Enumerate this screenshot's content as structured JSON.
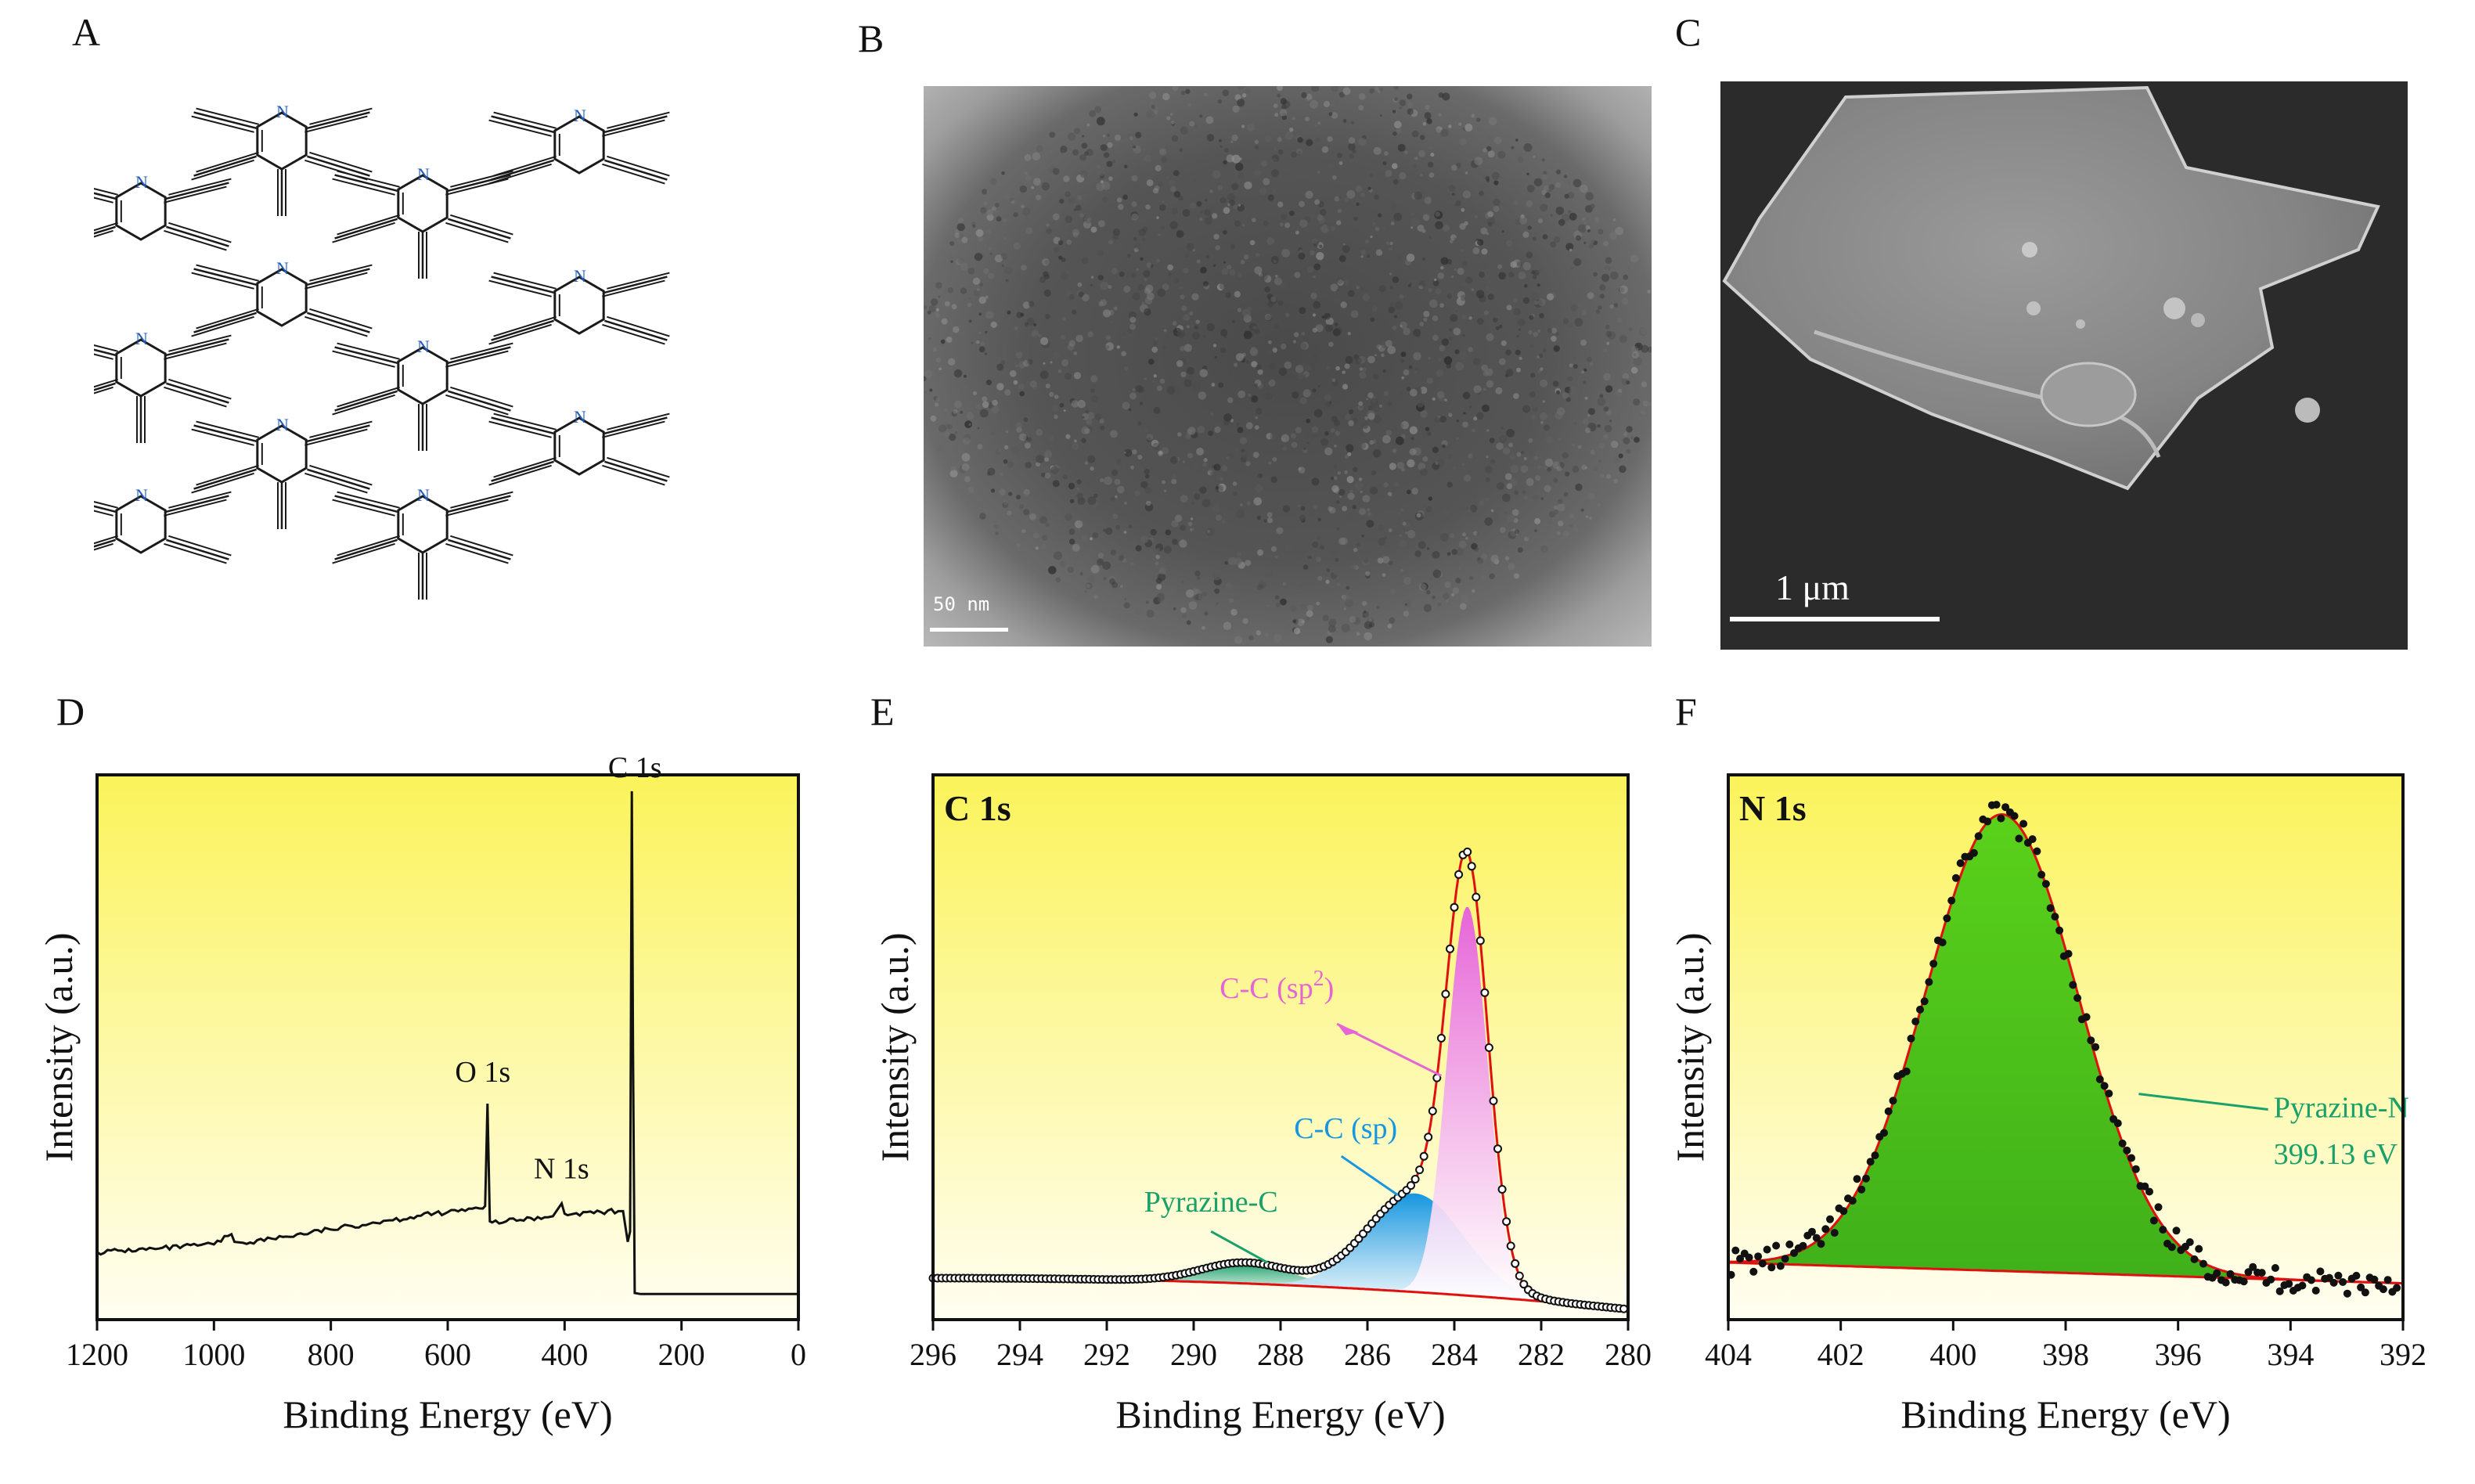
{
  "panel_labels": {
    "a": "A",
    "b": "B",
    "c": "C",
    "d": "D",
    "e": "E",
    "f": "F"
  },
  "structure": {
    "n_label": "N"
  },
  "tem": {
    "scale_text": "50 nm"
  },
  "sem": {
    "scale_text": "1 μm"
  },
  "colors": {
    "chart_bg_top": "#fbf35a",
    "chart_bg_bottom": "#fffef2",
    "fit": "#e01010",
    "sp2": "#e664d8",
    "sp": "#1596e0",
    "pyrazine": "#1aa06a",
    "n_fill": "#5ad11a",
    "n_text": "#1aa06a"
  },
  "chart_data": [
    {
      "type": "line",
      "title": "",
      "xlabel": "Binding Energy (eV)",
      "ylabel": "Intensity (a.u.)",
      "xlim": [
        1200,
        0
      ],
      "ylim": [
        0,
        100
      ],
      "xticks": [
        1200,
        1000,
        800,
        600,
        400,
        200,
        0
      ],
      "x": [
        1200,
        1100,
        1000,
        970,
        965,
        950,
        900,
        800,
        700,
        600,
        540,
        536,
        532,
        528,
        524,
        500,
        420,
        405,
        400,
        395,
        380,
        300,
        292,
        288,
        285,
        283,
        280,
        270,
        200,
        100,
        0
      ],
      "y": [
        10.0,
        10.6,
        11.5,
        13.5,
        12.0,
        11.8,
        12.6,
        14.4,
        16.2,
        17.8,
        18.5,
        19.0,
        39.0,
        16.0,
        15.8,
        16.0,
        17.0,
        19.5,
        17.5,
        17.2,
        17.6,
        18.0,
        12.0,
        14.0,
        100.0,
        50.0,
        2.0,
        1.8,
        1.8,
        1.8,
        1.8
      ],
      "annotations": [
        "C 1s",
        "O 1s",
        "N 1s"
      ]
    },
    {
      "type": "line",
      "title": "C 1s",
      "xlabel": "Binding Energy (eV)",
      "ylabel": "Intensity (a.u.)",
      "xlim": [
        296,
        280
      ],
      "ylim": [
        0,
        100
      ],
      "xticks": [
        296,
        294,
        292,
        290,
        288,
        286,
        284,
        282,
        280
      ],
      "series": [
        {
          "name": "C-C (sp²)",
          "center": 283.7,
          "height": 75,
          "fwhm": 1.1
        },
        {
          "name": "C-C (sp)",
          "center": 284.9,
          "height": 19,
          "fwhm": 2.6
        },
        {
          "name": "Pyrazine-C",
          "center": 288.8,
          "height": 4,
          "fwhm": 2.4
        }
      ],
      "baseline_start": 3.0,
      "baseline_end": -3.0,
      "annotations": [
        "C-C (sp",
        "2",
        ")",
        "C-C (sp)",
        "Pyrazine-C"
      ]
    },
    {
      "type": "line",
      "title": "N 1s",
      "xlabel": "Binding Energy (eV)",
      "ylabel": "Intensity (a.u.)",
      "xlim": [
        404,
        392
      ],
      "ylim": [
        0,
        100
      ],
      "xticks": [
        404,
        402,
        400,
        398,
        396,
        394,
        392
      ],
      "series": [
        {
          "name": "Pyrazine-N",
          "center": 399.13,
          "height": 88,
          "fwhm": 3.2
        }
      ],
      "baseline_start": 6.0,
      "baseline_end": 2.0,
      "annotations": [
        "Pyrazine-N",
        "399.13 eV"
      ]
    }
  ]
}
